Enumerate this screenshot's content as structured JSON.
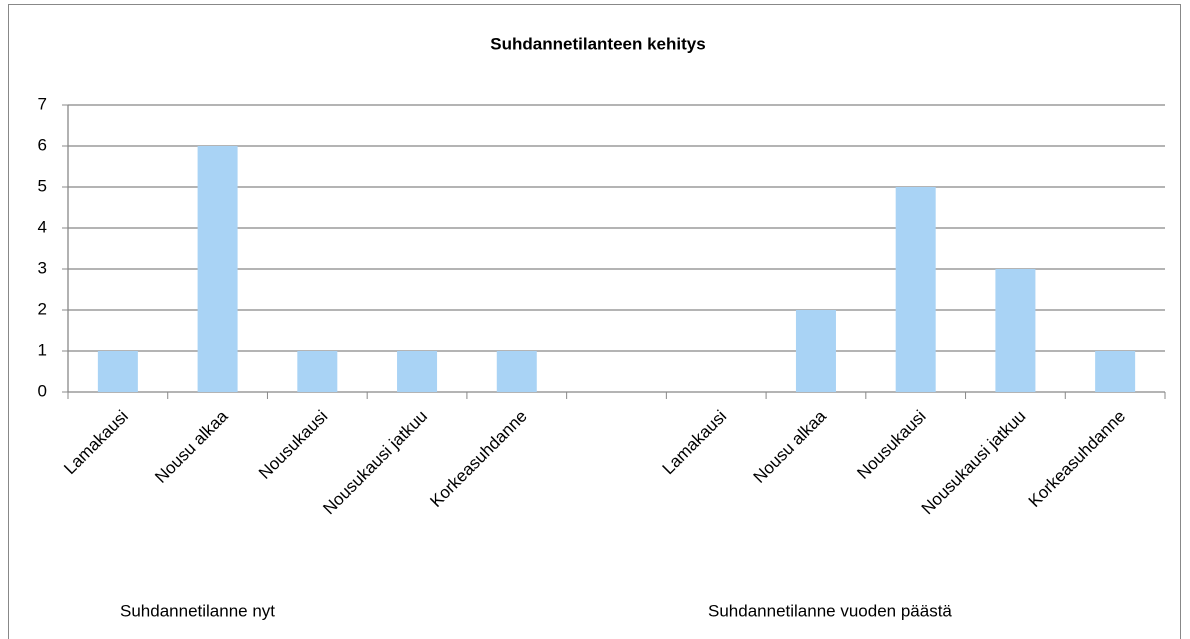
{
  "chart_data": {
    "type": "bar",
    "title": "Suhdannetilanteen kehitys",
    "categories": [
      "Lamakausi",
      "Nousu alkaa",
      "Nousukausi",
      "Nousukausi jatkuu",
      "Korkeasuhdanne",
      null,
      "Lamakausi",
      "Nousu alkaa",
      "Nousukausi",
      "Nousukausi jatkuu",
      "Korkeasuhdanne"
    ],
    "values": [
      1,
      6,
      1,
      1,
      1,
      null,
      0,
      2,
      5,
      3,
      1
    ],
    "group_labels": [
      "Suhdannetilanne nyt",
      "Suhdannetilanne vuoden päästä"
    ],
    "color": "#a9d3f5",
    "ylim": [
      0,
      7
    ],
    "yticks": [
      0,
      1,
      2,
      3,
      4,
      5,
      6,
      7
    ],
    "grid": true
  }
}
